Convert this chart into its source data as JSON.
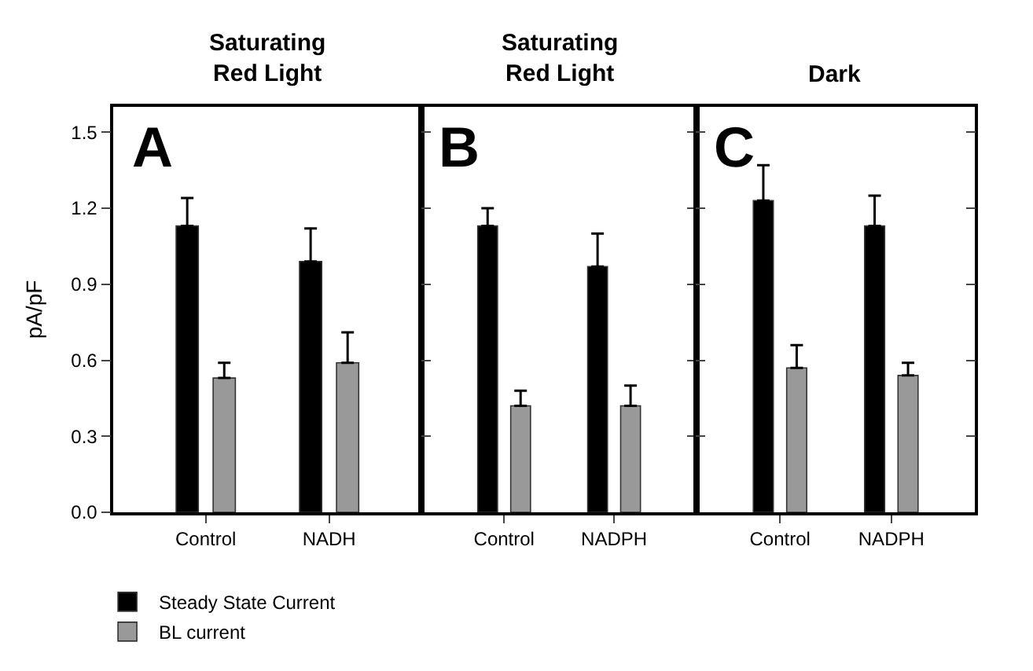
{
  "chart_data": [
    {
      "type": "bar",
      "title": "Saturating\nRed Light",
      "ylabel": "pA/pF",
      "annotations": [
        "A"
      ],
      "categories": [
        "Control",
        "NADH"
      ],
      "ylim": [
        0,
        1.6
      ],
      "yticks": [
        {
          "value": 0,
          "label": "0.0"
        },
        0.3,
        0.6,
        0.9,
        1.2,
        1.5
      ],
      "legend": "bottom left",
      "series": [
        {
          "name": "Steady State Current",
          "color": "#000000",
          "values": [
            1.13,
            0.99
          ],
          "errors": [
            [
              1.13,
              1.24
            ],
            [
              0.99,
              1.12
            ]
          ]
        },
        {
          "name": "BL current",
          "color": "#999999",
          "values": [
            0.53,
            0.59
          ],
          "errors": [
            [
              0.53,
              0.59
            ],
            [
              0.59,
              0.71
            ]
          ]
        }
      ]
    },
    {
      "type": "bar",
      "title": "Saturating\nRed Light",
      "annotations": [
        "B"
      ],
      "categories": [
        "Control",
        "NADPH"
      ],
      "ylim": [
        0,
        1.6
      ],
      "yticks": [
        0,
        0.3,
        0.6,
        0.9,
        1.2,
        1.5
      ],
      "tick_labels": "x",
      "series": [
        {
          "color": "#000000",
          "values": [
            1.13,
            0.97
          ],
          "errors": [
            [
              1.13,
              1.2
            ],
            [
              0.97,
              1.1
            ]
          ]
        },
        {
          "color": "#999999",
          "values": [
            0.42,
            0.42
          ],
          "errors": [
            [
              0.42,
              0.48
            ],
            [
              0.42,
              0.5
            ]
          ]
        }
      ]
    },
    {
      "type": "bar",
      "title": "Dark",
      "annotations": [
        "C"
      ],
      "categories": [
        "Control",
        "NADPH"
      ],
      "ylim": [
        0,
        1.6
      ],
      "yticks": [
        0,
        0.3,
        0.6,
        0.9,
        1.2,
        1.5
      ],
      "tick_labels": "x",
      "series": [
        {
          "color": "#000000",
          "values": [
            1.23,
            1.13
          ],
          "errors": [
            [
              1.23,
              1.37
            ],
            [
              1.13,
              1.25
            ]
          ]
        },
        {
          "color": "#999999",
          "values": [
            0.57,
            0.54
          ],
          "errors": [
            [
              0.57,
              0.66
            ],
            [
              0.54,
              0.59
            ]
          ]
        }
      ]
    }
  ]
}
